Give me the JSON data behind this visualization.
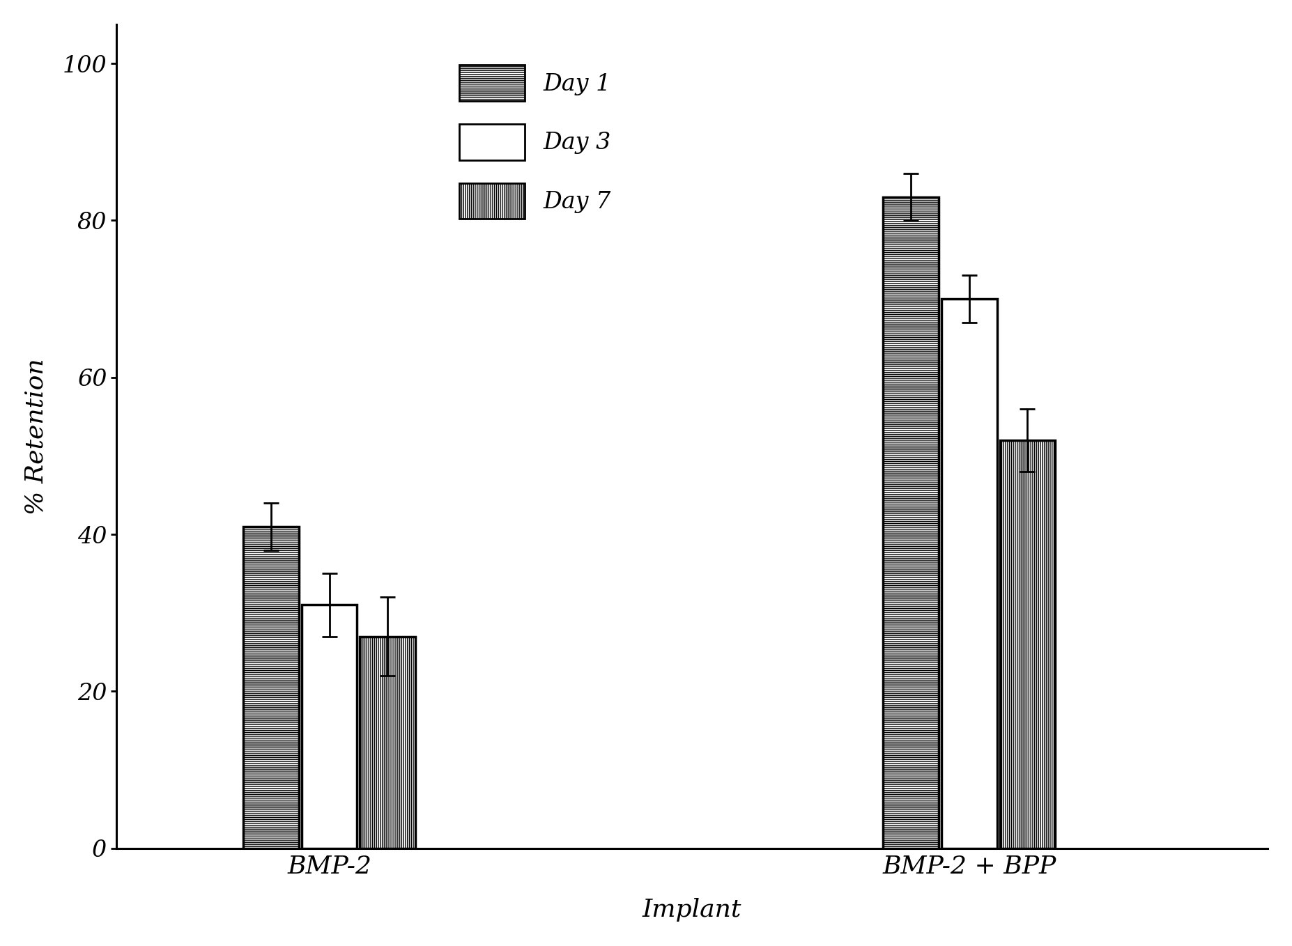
{
  "groups": [
    "BMP-2",
    "BMP-2 + BPP"
  ],
  "days": [
    "Day 1",
    "Day 3",
    "Day 7"
  ],
  "values": {
    "BMP-2": [
      41,
      31,
      27
    ],
    "BMP-2 + BPP": [
      83,
      70,
      52
    ]
  },
  "errors": {
    "BMP-2": [
      3,
      4,
      5
    ],
    "BMP-2 + BPP": [
      3,
      3,
      4
    ]
  },
  "ylabel": "% Retention",
  "xlabel": "Implant",
  "ylim": [
    0,
    105
  ],
  "yticks": [
    0,
    20,
    40,
    60,
    80,
    100
  ],
  "bar_width": 0.13,
  "group_centers": [
    1.0,
    2.5
  ],
  "hatch_day1": "------",
  "hatch_day3": "",
  "hatch_day7": "||||||",
  "legend_labels": [
    "Day 1",
    "Day 3",
    "Day 7"
  ],
  "background_color": "#ffffff",
  "bar_edge_color": "#000000",
  "bar_fill_color": "#ffffff",
  "errorbar_color": "#000000",
  "label_fontsize": 26,
  "tick_fontsize": 24,
  "legend_fontsize": 24
}
